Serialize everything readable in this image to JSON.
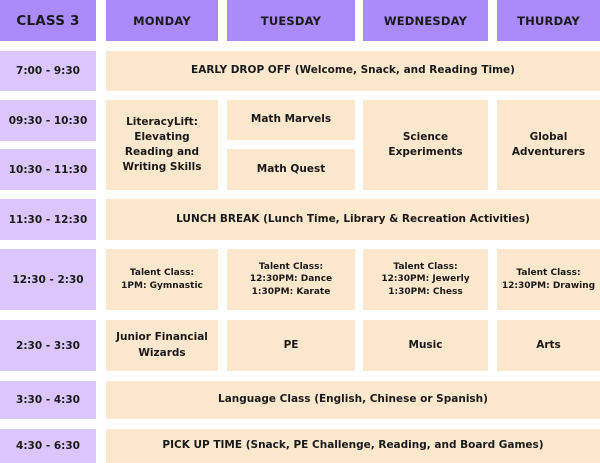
{
  "header": {
    "class_label": "CLASS 3",
    "days": [
      "MONDAY",
      "TUESDAY",
      "WEDNESDAY",
      "THURDAY"
    ]
  },
  "times": [
    "7:00 - 9:30",
    "09:30 - 10:30",
    "10:30 - 11:30",
    "11:30 - 12:30",
    "12:30 - 2:30",
    "2:30 - 3:30",
    "3:30 - 4:30",
    "4:30 - 6:30"
  ],
  "activities": {
    "early_drop_off": "EARLY DROP OFF (Welcome, Snack, and Reading Time)",
    "monday_literacy": "LiteracyLift:\nElevating\nReading and\nWriting Skills",
    "tuesday_math_marvels": "Math Marvels",
    "tuesday_math_quest": "Math Quest",
    "wednesday_science": "Science\nExperiments",
    "thursday_global": "Global\nAdventurers",
    "lunch_break": "LUNCH BREAK (Lunch Time, Library & Recreation Activities)",
    "monday_talent": "Talent Class:\n1PM: Gymnastic",
    "tuesday_talent": "Talent Class:\n12:30PM: Dance\n1:30PM: Karate",
    "wednesday_talent": "Talent Class:\n12:30PM: Jewerly\n1:30PM: Chess",
    "thursday_talent": "Talent Class:\n12:30PM: Drawing",
    "monday_financial": "Junior Financial\nWizards",
    "tuesday_pe": "PE",
    "wednesday_music": "Music",
    "thursday_arts": "Arts",
    "language_class": "Language Class (English, Chinese or Spanish)",
    "pick_up": "PICK UP TIME (Snack, PE Challenge, Reading, and Board Games)"
  },
  "colors": {
    "header": "#a98bfc",
    "time": "#dac6fc",
    "activity": "#fde8cd"
  }
}
